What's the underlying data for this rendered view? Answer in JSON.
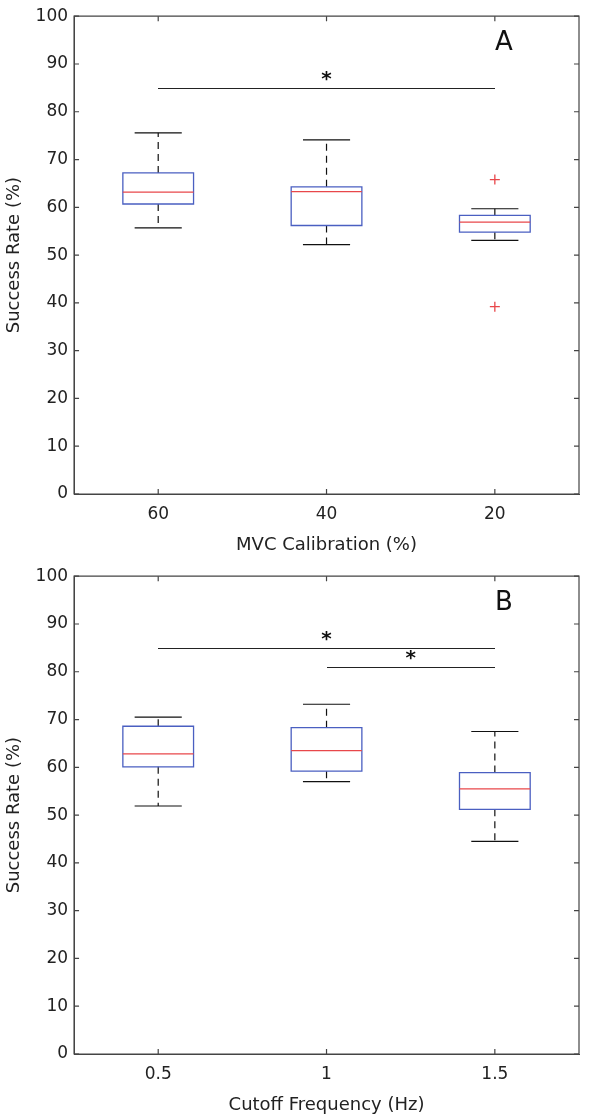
{
  "chart_data": [
    {
      "type": "box",
      "categories": [
        "60",
        "40",
        "20"
      ],
      "xlabel": "MVC Calibration (%)",
      "ylabel": "Success Rate (%)",
      "ylim": [
        0,
        100
      ],
      "yticks": [
        0,
        10,
        20,
        30,
        40,
        50,
        60,
        70,
        80,
        90,
        100
      ],
      "annotations": [
        "A",
        "*"
      ],
      "series": [
        {
          "color": "#4a5fc1",
          "boxes": [
            {
              "low": 55.7,
              "q1": 60.7,
              "median": 63.2,
              "q3": 67.2,
              "high": 75.6
            },
            {
              "low": 52.2,
              "q1": 56.2,
              "median": 63.3,
              "q3": 64.3,
              "high": 74.1
            },
            {
              "low": 53.1,
              "q1": 54.8,
              "median": 56.9,
              "q3": 58.3,
              "high": 59.7,
              "outliers": [
                65.8,
                39.2
              ]
            }
          ]
        }
      ]
    },
    {
      "type": "box",
      "categories": [
        "0.5",
        "1",
        "1.5"
      ],
      "xlabel": "Cutoff Frequency (Hz)",
      "ylabel": "Success Rate (%)",
      "ylim": [
        0,
        100
      ],
      "yticks": [
        0,
        10,
        20,
        30,
        40,
        50,
        60,
        70,
        80,
        90,
        100
      ],
      "annotations": [
        "B",
        "*",
        "*"
      ],
      "series": [
        {
          "color": "#4a5fc1",
          "boxes": [
            {
              "low": 51.9,
              "q1": 60.1,
              "median": 62.8,
              "q3": 68.6,
              "high": 70.5
            },
            {
              "low": 57.0,
              "q1": 59.2,
              "median": 63.5,
              "q3": 68.3,
              "high": 73.2
            },
            {
              "low": 44.5,
              "q1": 51.2,
              "median": 55.5,
              "q3": 58.9,
              "high": 67.5
            }
          ]
        }
      ]
    }
  ]
}
